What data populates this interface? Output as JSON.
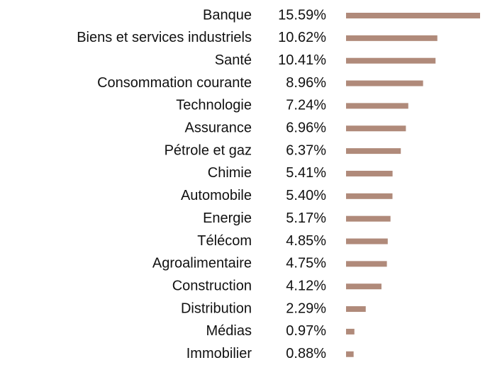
{
  "chart_data": {
    "type": "bar",
    "orientation": "horizontal",
    "categories": [
      "Banque",
      "Biens et services industriels",
      "Santé",
      "Consommation courante",
      "Technologie",
      "Assurance",
      "Pétrole et gaz",
      "Chimie",
      "Automobile",
      "Energie",
      "Télécom",
      "Agroalimentaire",
      "Construction",
      "Distribution",
      "Médias",
      "Immobilier"
    ],
    "values": [
      15.59,
      10.62,
      10.41,
      8.96,
      7.24,
      6.96,
      6.37,
      5.41,
      5.4,
      5.17,
      4.85,
      4.75,
      4.12,
      2.29,
      0.97,
      0.88
    ],
    "value_labels": [
      "15.59%",
      "10.62%",
      "10.41%",
      "8.96%",
      "7.24%",
      "6.96%",
      "6.37%",
      "5.41%",
      "5.40%",
      "5.17%",
      "4.85%",
      "4.75%",
      "4.12%",
      "2.29%",
      "0.97%",
      "0.88%"
    ],
    "color": "#b08a7a"
  }
}
